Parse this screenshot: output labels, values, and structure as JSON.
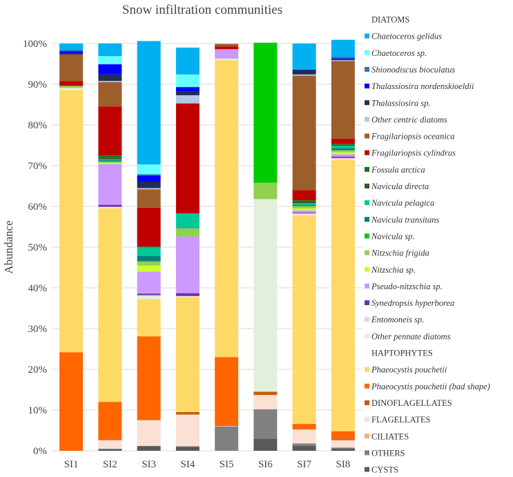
{
  "chart_data": {
    "type": "bar",
    "stacked": true,
    "title": "Snow infiltration communities",
    "xlabel": "",
    "ylabel": "Abundance",
    "ylim": [
      0,
      100
    ],
    "yticks": [
      0,
      10,
      20,
      30,
      40,
      50,
      60,
      70,
      80,
      90,
      100
    ],
    "ytick_labels": [
      "0%",
      "10%",
      "20%",
      "30%",
      "40%",
      "50%",
      "60%",
      "70%",
      "80%",
      "90%",
      "100%"
    ],
    "legend_position": "right",
    "categories": [
      "SI1",
      "SI2",
      "SI3",
      "SI4",
      "SI5",
      "SI6",
      "SI7",
      "SI8"
    ],
    "legend_headers": {
      "diatoms": "DIATOMS",
      "haptophytes": "HAPTOPHYTES"
    },
    "series": [
      {
        "name": "CYSTS",
        "color": "#595959",
        "italic": false,
        "values": [
          0,
          0.4,
          1.1,
          1.0,
          0,
          3.0,
          1.2,
          0.5
        ]
      },
      {
        "name": "OTHERS",
        "color": "#808080",
        "italic": false,
        "values": [
          0,
          0.1,
          0.1,
          0.1,
          6.0,
          7.2,
          0.6,
          0.3
        ]
      },
      {
        "name": "CILIATES",
        "color": "#f4b183",
        "italic": false,
        "values": [
          0,
          0,
          0,
          0,
          0,
          0,
          0,
          0
        ]
      },
      {
        "name": "FLAGELLATES",
        "color": "#fbe0d4",
        "italic": false,
        "values": [
          0,
          2.1,
          6.3,
          7.8,
          0.1,
          3.5,
          3.4,
          1.8
        ]
      },
      {
        "name": "DINOFLAGELLATES",
        "color": "#c55a11",
        "italic": false,
        "values": [
          0,
          0,
          0.1,
          0.6,
          0,
          0.8,
          0.1,
          0.2
        ]
      },
      {
        "name": "Phaeocystis pouchetii (bad shape)",
        "color": "#ff6600",
        "italic": true,
        "values": [
          24.2,
          9.4,
          20.5,
          0,
          16.9,
          0,
          1.3,
          2.0
        ]
      },
      {
        "name": "Phaeocystis pouchetii",
        "color": "#ffd966",
        "italic": true,
        "values": [
          64.4,
          47.5,
          9.1,
          28.2,
          72.9,
          0,
          51.2,
          66.6
        ]
      },
      {
        "name": "Other pennate diatoms",
        "color": "#e2efda",
        "italic": true,
        "values": [
          0.4,
          0.3,
          0.8,
          0.2,
          0.3,
          47.3,
          0.2,
          0.2
        ]
      },
      {
        "name": "Entomoneis sp.",
        "color": "#ffc7f0",
        "italic": true,
        "values": [
          0.1,
          0.1,
          0.2,
          0.1,
          0.1,
          0,
          0.3,
          0.3
        ]
      },
      {
        "name": "Synedropsis hyperborea",
        "color": "#7030a0",
        "italic": true,
        "values": [
          0,
          0.5,
          0.4,
          0.7,
          0,
          0,
          0.2,
          0.3
        ]
      },
      {
        "name": "Pseudo-nitzschia sp.",
        "color": "#cc99ff",
        "italic": true,
        "values": [
          0,
          10.0,
          5.4,
          13.9,
          2.3,
          0,
          0.5,
          0.6
        ]
      },
      {
        "name": "Nitzschia sp.",
        "color": "#ccff33",
        "italic": true,
        "values": [
          0,
          0.3,
          1.5,
          0,
          0,
          0,
          0.5,
          0.5
        ]
      },
      {
        "name": "Nitzschia frigida",
        "color": "#92d050",
        "italic": true,
        "values": [
          0.5,
          0.3,
          1.0,
          2.0,
          0,
          4.0,
          0.6,
          0.5
        ]
      },
      {
        "name": "Navicula sp.",
        "color": "#00cc00",
        "italic": true,
        "values": [
          0,
          0,
          0,
          0,
          0,
          34.4,
          0,
          0
        ]
      },
      {
        "name": "Navicula transitans",
        "color": "#008080",
        "italic": true,
        "values": [
          0,
          0.3,
          1.3,
          0.1,
          0,
          0,
          0.3,
          0.5
        ]
      },
      {
        "name": "Navicula pelagica",
        "color": "#00c896",
        "italic": true,
        "values": [
          0,
          0.3,
          2.2,
          3.6,
          0,
          0,
          0.4,
          0.6
        ]
      },
      {
        "name": "Navicula directa",
        "color": "#375623",
        "italic": true,
        "values": [
          0,
          0.4,
          0.2,
          0,
          0,
          0,
          0.4,
          0.3
        ]
      },
      {
        "name": "Fossula arctica",
        "color": "#0f7a0f",
        "italic": true,
        "values": [
          0,
          0.5,
          0,
          0,
          0,
          0,
          0.3,
          0.2
        ]
      },
      {
        "name": "Fragilariopsis cylindrus",
        "color": "#c00000",
        "italic": true,
        "values": [
          1.2,
          12.0,
          9.5,
          27.0,
          0.7,
          0,
          2.5,
          1.2
        ]
      },
      {
        "name": "Fragilariopsis oceanica",
        "color": "#9c5f2c",
        "italic": true,
        "values": [
          6.5,
          6.0,
          4.5,
          0,
          0.6,
          0,
          28.1,
          19.1
        ]
      },
      {
        "name": "Other centric diatoms",
        "color": "#b4c6e7",
        "italic": true,
        "values": [
          0,
          0.3,
          0.3,
          2.0,
          0,
          0,
          0.3,
          0.2
        ]
      },
      {
        "name": "Thalassiosira sp.",
        "color": "#1f2d5a",
        "italic": true,
        "values": [
          0.3,
          1.6,
          1.6,
          1.0,
          0,
          0,
          1.2,
          0.3
        ]
      },
      {
        "name": "Thalassiosira nordenskioeldii",
        "color": "#0000ff",
        "italic": true,
        "values": [
          0.5,
          2.5,
          1.5,
          1.0,
          0,
          0,
          0,
          0.2
        ]
      },
      {
        "name": "Shionodiscus bioculatus",
        "color": "#2e75b6",
        "italic": true,
        "values": [
          0.4,
          0,
          0.3,
          0,
          0,
          0,
          0,
          0.3
        ]
      },
      {
        "name": "Chaetoceros sp.",
        "color": "#66ffff",
        "italic": true,
        "values": [
          0,
          2.0,
          2.4,
          3.1,
          0,
          0,
          0,
          0
        ]
      },
      {
        "name": "Chaetoceros gelidus",
        "color": "#00b0f0",
        "italic": true,
        "values": [
          1.5,
          3.1,
          30.3,
          6.6,
          0,
          0,
          6.4,
          4.2
        ]
      }
    ]
  }
}
